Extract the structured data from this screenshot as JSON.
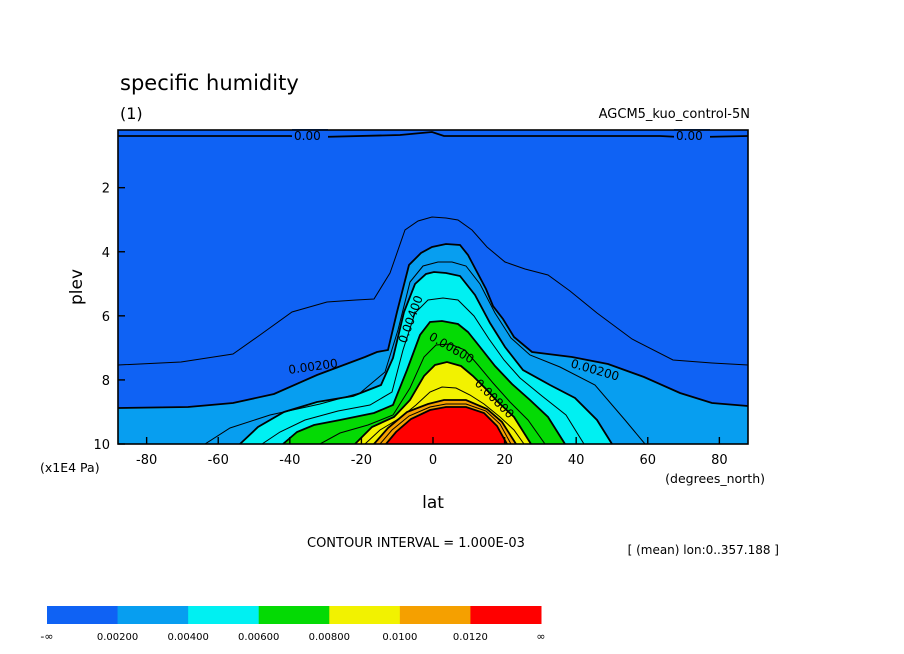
{
  "chart_data": {
    "type": "heatmap",
    "subtype": "filled-contour",
    "title": "specific humidity",
    "subtitle": "(1)",
    "dataset_label": "AGCM5_kuo_control-5N",
    "xlabel": "lat",
    "xunits": "(degrees_north)",
    "ylabel": "plev",
    "yunits": "(x1E4 Pa)",
    "xlim": [
      -88,
      88
    ],
    "ylim": [
      0.2,
      10
    ],
    "y_inverted": true,
    "x_ticks": [
      -80,
      -60,
      -40,
      -20,
      0,
      20,
      40,
      60,
      80
    ],
    "x_tick_labels": [
      "-80",
      "-60",
      "-40",
      "-20",
      "0",
      "20",
      "40",
      "60",
      "80"
    ],
    "y_ticks": [
      2,
      4,
      6,
      8,
      10
    ],
    "y_tick_labels": [
      "2",
      "4",
      "6",
      "8",
      "10"
    ],
    "contour_interval_text": "CONTOUR INTERVAL = 1.000E-03",
    "mean_note": "[ (mean) lon:0..357.188 ]",
    "levels": [
      0.001,
      0.002,
      0.003,
      0.004,
      0.005,
      0.006,
      0.007,
      0.008,
      0.009,
      0.01,
      0.011,
      0.012
    ],
    "fill_colors": [
      "#0f62f4",
      "#079ef0",
      "#00f0f2",
      "#04da04",
      "#f2f200",
      "#f5a000",
      "#ff0000"
    ],
    "contour_curves": [
      {
        "level": 0.0,
        "x": [
          -88,
          -40,
          -35,
          -32,
          -5,
          0,
          5,
          10,
          60,
          65,
          70,
          88
        ],
        "y": [
          0.2,
          0.2,
          0.3,
          0.3,
          0.25,
          0.18,
          0.25,
          0.25,
          0.25,
          0.25,
          0.3,
          0.2
        ]
      },
      {
        "level": 0.001,
        "x": [
          -88,
          -70,
          -55,
          -42,
          -30,
          -22,
          -18,
          -14,
          -10,
          -6,
          -2,
          2,
          6,
          10,
          14,
          18,
          22,
          26,
          30,
          40,
          50,
          60,
          70,
          80,
          88
        ],
        "y": [
          7.45,
          7.35,
          7.1,
          6.5,
          5.8,
          5.5,
          5.45,
          5.5,
          5.2,
          3.8,
          3.1,
          2.9,
          2.9,
          2.95,
          3.2,
          3.9,
          4.5,
          4.7,
          4.85,
          5.0,
          5.7,
          6.6,
          7.25,
          7.35,
          7.45
        ]
      },
      {
        "level": 0.002,
        "x": [
          -88,
          -70,
          -55,
          -42,
          -30,
          -15,
          -12,
          -9,
          -7,
          -4,
          0,
          4,
          8,
          12,
          16,
          20,
          26,
          30,
          40,
          50,
          60,
          70,
          80,
          88
        ],
        "y": [
          8.8,
          8.75,
          8.6,
          8.3,
          7.7,
          7.25,
          7.15,
          7.1,
          5.9,
          4.3,
          3.9,
          3.7,
          3.65,
          3.8,
          4.4,
          5.1,
          6.3,
          7.1,
          7.25,
          7.5,
          7.95,
          8.4,
          8.7,
          8.8
        ]
      },
      {
        "level": 0.003,
        "x": [
          -88,
          -70,
          -55,
          -45,
          -35,
          -25,
          -15,
          -12,
          -8,
          -5,
          0,
          4,
          8,
          12,
          16,
          20,
          26,
          32,
          40,
          50,
          60,
          70,
          88
        ],
        "y": [
          10.0,
          10.0,
          9.5,
          9.0,
          8.5,
          8.3,
          8.0,
          7.5,
          6.2,
          4.9,
          4.4,
          4.3,
          4.3,
          4.5,
          5.2,
          6.0,
          7.0,
          7.6,
          8.0,
          8.5,
          9.2,
          10.0,
          10.0
        ]
      }
    ],
    "colorbar_labels": [
      "-∞",
      "0.00200",
      "0.00400",
      "0.00600",
      "0.00800",
      "0.0100",
      "0.0120",
      "∞"
    ],
    "inline_labels": [
      "0.00",
      "0.00",
      "0.00200",
      "0.00200",
      "0.00400",
      "0.00600",
      "0.00800"
    ]
  }
}
